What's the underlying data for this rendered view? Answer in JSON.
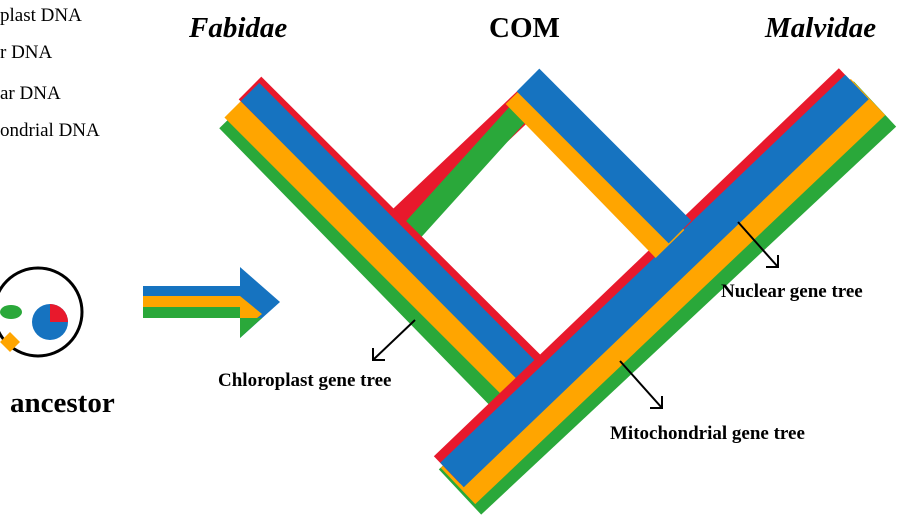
{
  "legend": {
    "items": [
      {
        "label": "plast DNA",
        "color": "#2aa83a"
      },
      {
        "label": "r DNA",
        "color": "#ffa500"
      },
      {
        "label": "ar DNA",
        "color": "#1673c0"
      },
      {
        "label": "ondrial DNA",
        "color": "#e8192c"
      }
    ]
  },
  "titles": {
    "fabidae": "Fabidae",
    "com": "COM",
    "malvidae": "Malvidae"
  },
  "ancestor": {
    "label": "ancestor",
    "organelles": [
      "green-oval",
      "orange-diamond",
      "blue-red-circle"
    ]
  },
  "gene_trees": {
    "chloroplast": "Chloroplast gene tree",
    "nuclear": "Nuclear gene tree",
    "mitochondrial": "Mitochondrial  gene tree"
  },
  "colors": {
    "chloroplast": "#2aa83a",
    "mitochondrial": "#ffa500",
    "nuclear": "#1673c0",
    "red": "#e8192c"
  }
}
